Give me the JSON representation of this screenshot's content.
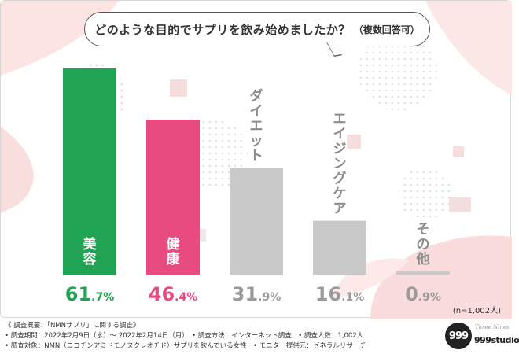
{
  "question": {
    "main": "どのような目的でサプリを飲み始めましたか？",
    "sub": "（複数回答可）"
  },
  "chart_data": {
    "type": "bar",
    "categories": [
      "美容",
      "健康",
      "ダイエット",
      "エイジングケア",
      "その他"
    ],
    "values": [
      61.7,
      46.4,
      31.9,
      16.1,
      0.9
    ],
    "value_int": [
      "61",
      "46",
      "31",
      "16",
      "0"
    ],
    "value_dec": [
      ".7%",
      ".4%",
      ".9%",
      ".1%",
      ".9%"
    ],
    "ylim": [
      0,
      61.7
    ],
    "colors": [
      "#20a353",
      "#e84b7f",
      "#c9c9c9",
      "#c9c9c9",
      "#c9c9c9"
    ],
    "value_colors": [
      "#20a353",
      "#e84b7f",
      "#9a9a9a",
      "#9a9a9a",
      "#9a9a9a"
    ],
    "label_inside": [
      true,
      true,
      false,
      false,
      false
    ],
    "grid": false
  },
  "sample_size": "(n=1,002人)",
  "footer": {
    "line1": "《 調査概要：「NMNサプリ」に関する調査》",
    "line2": "• 調査期間：2022年2月9日（水）～ 2022年2月14日（月）　• 調査方法：インターネット調査　• 調査人数：1,002人",
    "line3": "• 調査対象：NMN（ニコチンアミドモノヌクレオチド）サプリを飲んでいる女性　• モニター提供元：ゼネラルリサーチ"
  },
  "logo": {
    "circle_text": "999",
    "script_text": "Three Nines",
    "word": "999studio"
  }
}
